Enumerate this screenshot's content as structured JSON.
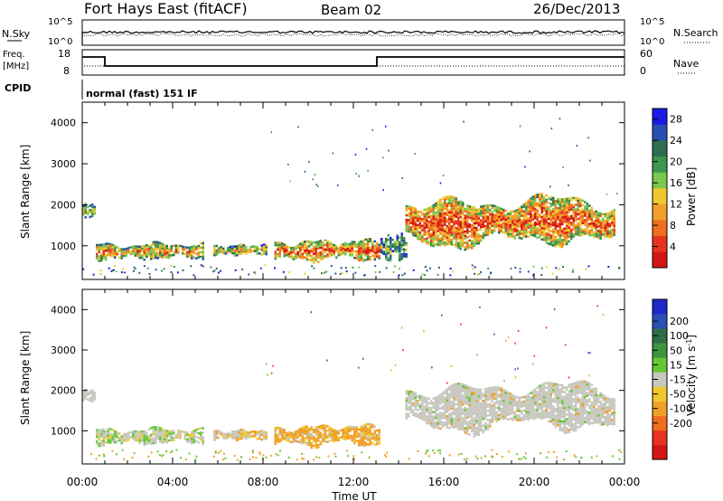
{
  "header": {
    "station": "Fort Hays East (fitACF)",
    "beam": "Beam 02",
    "date": "26/Dec/2013"
  },
  "top_panels": {
    "nsky_label": "N.Sky",
    "nsearch_label": "N.Search",
    "nsky_ticks": [
      "10^5",
      "10^0"
    ],
    "nsearch_ticks": [
      "10^5",
      "10^0"
    ],
    "freq_label_1": "Freq.",
    "freq_label_2": "[MHz]",
    "freq_ticks": [
      "18",
      "8"
    ],
    "nave_label": "Nave",
    "nave_ticks": [
      "60",
      "0"
    ],
    "cpid_label": "CPID",
    "cpid_text": "normal (fast) 151 IF"
  },
  "chart_data": [
    {
      "type": "heatmap",
      "title": "",
      "xlabel": "Time UT",
      "ylabel": "Slant Range [km]",
      "x_ticks": [
        "00:00",
        "04:00",
        "08:00",
        "12:00",
        "16:00",
        "20:00",
        "00:00"
      ],
      "y_ticks": [
        1000,
        2000,
        3000,
        4000
      ],
      "xlim": [
        0,
        24
      ],
      "ylim": [
        180,
        4500
      ],
      "colorbar": {
        "label": "Power [dB]",
        "ticks": [
          "4",
          "8",
          "12",
          "16",
          "20",
          "24",
          "28"
        ],
        "range": [
          0,
          30
        ],
        "colors": [
          "#1a1ae6",
          "#2850b0",
          "#2e6e50",
          "#3c9650",
          "#78c850",
          "#f0c82d",
          "#f0a028",
          "#f06e1e",
          "#e6321e",
          "#d21414"
        ]
      },
      "regions": [
        {
          "t0": 0.0,
          "t1": 0.6,
          "r0": 1700,
          "r1": 2050,
          "level": 0.45
        },
        {
          "t0": 0.6,
          "t1": 5.4,
          "r0": 680,
          "r1": 1080,
          "level": 0.62
        },
        {
          "t0": 5.8,
          "t1": 8.2,
          "r0": 790,
          "r1": 1040,
          "level": 0.52
        },
        {
          "t0": 8.5,
          "t1": 13.2,
          "r0": 640,
          "r1": 1160,
          "level": 0.72
        },
        {
          "t0": 13.2,
          "t1": 14.3,
          "r0": 650,
          "r1": 1300,
          "level": 0.35
        },
        {
          "t0": 14.3,
          "t1": 23.6,
          "r0": 1000,
          "r1": 2200,
          "level": 0.75
        }
      ]
    },
    {
      "type": "heatmap",
      "title": "",
      "xlabel": "Time UT",
      "ylabel": "Slant Range [km]",
      "x_ticks": [
        "00:00",
        "04:00",
        "08:00",
        "12:00",
        "16:00",
        "20:00",
        "00:00"
      ],
      "y_ticks": [
        1000,
        2000,
        3000,
        4000
      ],
      "xlim": [
        0,
        24
      ],
      "ylim": [
        180,
        4500
      ],
      "colorbar": {
        "label": "Velocity [m s^-1]",
        "ticks": [
          "200",
          "100",
          "50",
          "15",
          "-15",
          "-50",
          "-100",
          "-200"
        ],
        "colors": [
          "#1e28c8",
          "#2850b4",
          "#2e6e46",
          "#3c963c",
          "#64c832",
          "#c8c8c0",
          "#f0c82d",
          "#f0a028",
          "#f06e1e",
          "#e6321e",
          "#d21414"
        ]
      },
      "regions": [
        {
          "t0": 0.0,
          "t1": 0.6,
          "r0": 1700,
          "r1": 2050,
          "class": "ground"
        },
        {
          "t0": 0.6,
          "t1": 5.4,
          "r0": 680,
          "r1": 1080,
          "class": "ground-green"
        },
        {
          "t0": 5.8,
          "t1": 8.2,
          "r0": 790,
          "r1": 1040,
          "class": "ground-orange"
        },
        {
          "t0": 8.5,
          "t1": 13.2,
          "r0": 640,
          "r1": 1160,
          "class": "orange"
        },
        {
          "t0": 14.3,
          "t1": 23.6,
          "r0": 1000,
          "r1": 2200,
          "class": "ground"
        }
      ]
    }
  ]
}
